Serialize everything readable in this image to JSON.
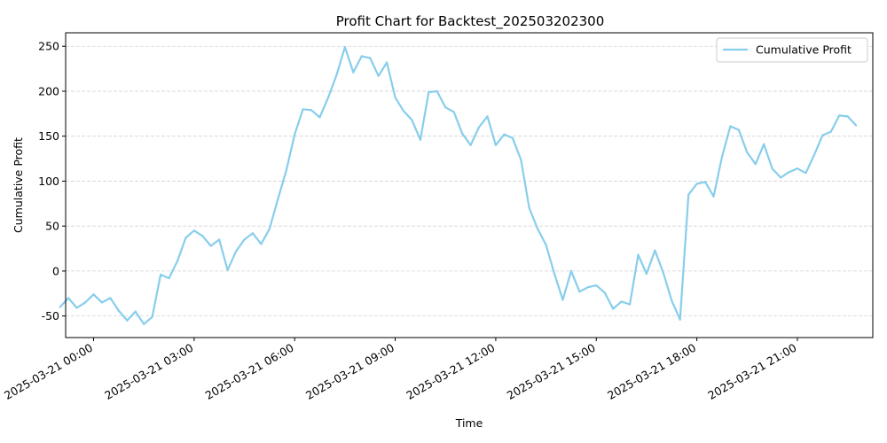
{
  "chart_data": {
    "type": "line",
    "title": "Profit Chart for Backtest_202503202300",
    "xlabel": "Time",
    "ylabel": "Cumulative Profit",
    "ylim": [
      -74,
      265
    ],
    "yticks": [
      -50,
      0,
      50,
      100,
      150,
      200,
      250
    ],
    "xlim": [
      "2025-03-20 23:10",
      "2025-03-21 23:15"
    ],
    "xticks": [
      {
        "t": "2025-03-21 00:00",
        "label": "2025-03-21 00:00"
      },
      {
        "t": "2025-03-21 03:00",
        "label": "2025-03-21 03:00"
      },
      {
        "t": "2025-03-21 06:00",
        "label": "2025-03-21 06:00"
      },
      {
        "t": "2025-03-21 09:00",
        "label": "2025-03-21 09:00"
      },
      {
        "t": "2025-03-21 12:00",
        "label": "2025-03-21 12:00"
      },
      {
        "t": "2025-03-21 15:00",
        "label": "2025-03-21 15:00"
      },
      {
        "t": "2025-03-21 18:00",
        "label": "2025-03-21 18:00"
      },
      {
        "t": "2025-03-21 21:00",
        "label": "2025-03-21 21:00"
      }
    ],
    "grid": "y-dashed",
    "legend_position": "top-right",
    "series": [
      {
        "name": "Cumulative Profit",
        "color": "#87ceeb",
        "points": [
          [
            "2025-03-20 23:00",
            -40
          ],
          [
            "2025-03-20 23:15",
            -30
          ],
          [
            "2025-03-20 23:30",
            -41
          ],
          [
            "2025-03-20 23:45",
            -35
          ],
          [
            "2025-03-21 00:00",
            -26
          ],
          [
            "2025-03-21 00:15",
            -35
          ],
          [
            "2025-03-21 00:30",
            -30
          ],
          [
            "2025-03-21 00:45",
            -44
          ],
          [
            "2025-03-21 01:00",
            -55
          ],
          [
            "2025-03-21 01:15",
            -45
          ],
          [
            "2025-03-21 01:30",
            -59
          ],
          [
            "2025-03-21 01:45",
            -51
          ],
          [
            "2025-03-21 02:00",
            -4
          ],
          [
            "2025-03-21 02:15",
            -8
          ],
          [
            "2025-03-21 02:30",
            11
          ],
          [
            "2025-03-21 02:45",
            37
          ],
          [
            "2025-03-21 03:00",
            45
          ],
          [
            "2025-03-21 03:15",
            39
          ],
          [
            "2025-03-21 03:30",
            28
          ],
          [
            "2025-03-21 03:45",
            35
          ],
          [
            "2025-03-21 04:00",
            1
          ],
          [
            "2025-03-21 04:15",
            22
          ],
          [
            "2025-03-21 04:30",
            35
          ],
          [
            "2025-03-21 04:45",
            42
          ],
          [
            "2025-03-21 05:00",
            30
          ],
          [
            "2025-03-21 05:15",
            47
          ],
          [
            "2025-03-21 05:30",
            80
          ],
          [
            "2025-03-21 05:45",
            112
          ],
          [
            "2025-03-21 06:00",
            152
          ],
          [
            "2025-03-21 06:15",
            180
          ],
          [
            "2025-03-21 06:30",
            179
          ],
          [
            "2025-03-21 06:45",
            171
          ],
          [
            "2025-03-21 07:00",
            193
          ],
          [
            "2025-03-21 07:15",
            218
          ],
          [
            "2025-03-21 07:30",
            249
          ],
          [
            "2025-03-21 07:45",
            221
          ],
          [
            "2025-03-21 08:00",
            239
          ],
          [
            "2025-03-21 08:15",
            237
          ],
          [
            "2025-03-21 08:30",
            217
          ],
          [
            "2025-03-21 08:45",
            232
          ],
          [
            "2025-03-21 09:00",
            193
          ],
          [
            "2025-03-21 09:15",
            178
          ],
          [
            "2025-03-21 09:30",
            168
          ],
          [
            "2025-03-21 09:45",
            146
          ],
          [
            "2025-03-21 10:00",
            199
          ],
          [
            "2025-03-21 10:15",
            200
          ],
          [
            "2025-03-21 10:30",
            182
          ],
          [
            "2025-03-21 10:45",
            177
          ],
          [
            "2025-03-21 11:00",
            153
          ],
          [
            "2025-03-21 11:15",
            140
          ],
          [
            "2025-03-21 11:30",
            160
          ],
          [
            "2025-03-21 11:45",
            172
          ],
          [
            "2025-03-21 12:00",
            140
          ],
          [
            "2025-03-21 12:15",
            152
          ],
          [
            "2025-03-21 12:30",
            148
          ],
          [
            "2025-03-21 12:45",
            124
          ],
          [
            "2025-03-21 13:00",
            70
          ],
          [
            "2025-03-21 13:15",
            47
          ],
          [
            "2025-03-21 13:30",
            29
          ],
          [
            "2025-03-21 13:45",
            -3
          ],
          [
            "2025-03-21 14:00",
            -32
          ],
          [
            "2025-03-21 14:15",
            0
          ],
          [
            "2025-03-21 14:30",
            -23
          ],
          [
            "2025-03-21 14:45",
            -18
          ],
          [
            "2025-03-21 15:00",
            -16
          ],
          [
            "2025-03-21 15:15",
            -24
          ],
          [
            "2025-03-21 15:30",
            -42
          ],
          [
            "2025-03-21 15:45",
            -34
          ],
          [
            "2025-03-21 16:00",
            -37
          ],
          [
            "2025-03-21 16:15",
            18
          ],
          [
            "2025-03-21 16:30",
            -3
          ],
          [
            "2025-03-21 16:45",
            23
          ],
          [
            "2025-03-21 17:00",
            -2
          ],
          [
            "2025-03-21 17:15",
            -33
          ],
          [
            "2025-03-21 17:30",
            -54
          ],
          [
            "2025-03-21 17:45",
            85
          ],
          [
            "2025-03-21 18:00",
            97
          ],
          [
            "2025-03-21 18:15",
            99
          ],
          [
            "2025-03-21 18:30",
            83
          ],
          [
            "2025-03-21 18:45",
            127
          ],
          [
            "2025-03-21 19:00",
            161
          ],
          [
            "2025-03-21 19:15",
            157
          ],
          [
            "2025-03-21 19:30",
            132
          ],
          [
            "2025-03-21 19:45",
            119
          ],
          [
            "2025-03-21 20:00",
            141
          ],
          [
            "2025-03-21 20:15",
            114
          ],
          [
            "2025-03-21 20:30",
            104
          ],
          [
            "2025-03-21 20:45",
            110
          ],
          [
            "2025-03-21 21:00",
            114
          ],
          [
            "2025-03-21 21:15",
            109
          ],
          [
            "2025-03-21 21:30",
            129
          ],
          [
            "2025-03-21 21:45",
            151
          ],
          [
            "2025-03-21 22:00",
            155
          ],
          [
            "2025-03-21 22:15",
            173
          ],
          [
            "2025-03-21 22:30",
            172
          ],
          [
            "2025-03-21 22:45",
            162
          ]
        ]
      }
    ]
  }
}
